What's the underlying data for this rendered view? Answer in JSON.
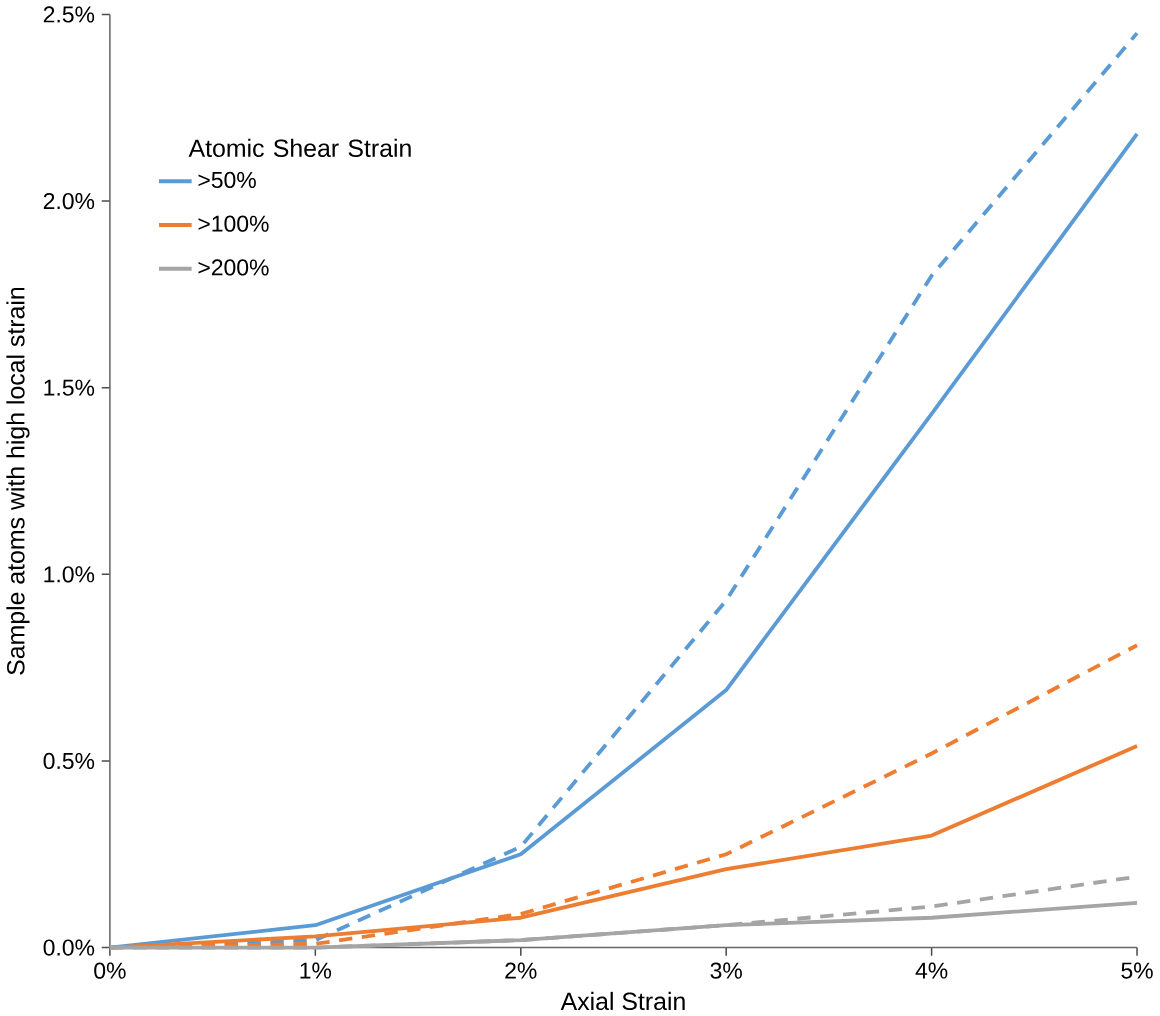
{
  "chart_data": {
    "type": "line",
    "xlabel": "Axial Strain",
    "ylabel": "Sample atoms with high local strain",
    "legend_title": "Atomic Shear Strain",
    "legend": "top left",
    "marker": "none",
    "x": [
      0,
      1,
      2,
      3,
      4,
      5
    ],
    "series": [
      {
        "name": ">50%",
        "color": "#5b9bd5",
        "line_style": "solid",
        "values": [
          0,
          0.06,
          0.25,
          0.69,
          1.43,
          2.18
        ]
      },
      {
        "color": "#5b9bd5",
        "line_style": "dashed",
        "values": [
          0,
          0.02,
          0.27,
          0.93,
          1.8,
          2.45
        ]
      },
      {
        "name": ">100%",
        "color": "#ed7d31",
        "line_style": "solid",
        "values": [
          0,
          0.03,
          0.08,
          0.21,
          0.3,
          0.54
        ]
      },
      {
        "color": "#ed7d31",
        "line_style": "dashed",
        "values": [
          0,
          0.01,
          0.09,
          0.25,
          0.52,
          0.81
        ]
      },
      {
        "name": ">200%",
        "color": "#a5a5a5",
        "line_style": "solid",
        "values": [
          0,
          0,
          0.02,
          0.06,
          0.08,
          0.12
        ]
      },
      {
        "color": "#a5a5a5",
        "line_style": "dashed",
        "values": [
          0,
          0,
          0.02,
          0.06,
          0.11,
          0.19
        ]
      }
    ],
    "xlim": [
      0,
      5
    ],
    "ylim": [
      0,
      2.5
    ],
    "xticks": [
      {
        "value": 0,
        "label": "0%"
      },
      {
        "value": 1,
        "label": "1%"
      },
      {
        "value": 2,
        "label": "2%"
      },
      {
        "value": 3,
        "label": "3%"
      },
      {
        "value": 4,
        "label": "4%"
      },
      {
        "value": 5,
        "label": "5%"
      }
    ],
    "yticks": [
      {
        "value": 0,
        "label": "0.0%"
      },
      {
        "value": 0.5,
        "label": "0.5%"
      },
      {
        "value": 1,
        "label": "1.0%"
      },
      {
        "value": 1.5,
        "label": "1.5%"
      },
      {
        "value": 2,
        "label": "2.0%"
      },
      {
        "value": 2.5,
        "label": "2.5%"
      }
    ],
    "grid": false
  }
}
